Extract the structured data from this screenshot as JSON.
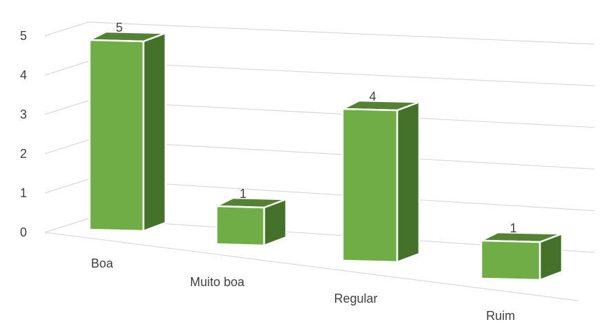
{
  "chart_data": {
    "type": "bar",
    "title": "",
    "xlabel": "",
    "ylabel": "",
    "categories": [
      "Boa",
      "Muito boa",
      "Regular",
      "Ruim"
    ],
    "values": [
      5,
      1,
      4,
      1
    ],
    "data_labels": [
      "5",
      "1",
      "4",
      "1"
    ],
    "ylim": [
      0,
      5
    ],
    "yticks": [
      "0",
      "1",
      "2",
      "3",
      "4",
      "5"
    ],
    "grid": true,
    "legend": "none",
    "style": "3d-column",
    "colors": {
      "bar_front": "#70ad47",
      "bar_top": "#548235",
      "bar_side": "#44722b",
      "bar_edge": "#ffffff",
      "grid": "#d9d9d9",
      "text": "#404040"
    }
  }
}
